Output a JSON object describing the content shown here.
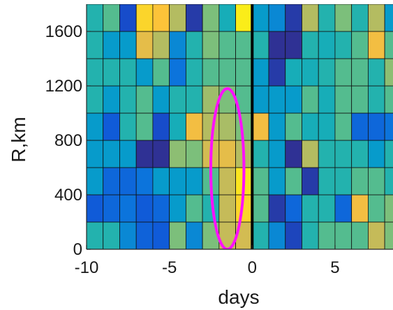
{
  "chart_data": {
    "type": "heatmap",
    "title": "",
    "xlabel": "days",
    "ylabel": "R,km",
    "xlim": [
      -10,
      8.5
    ],
    "ylim": [
      0,
      1800
    ],
    "x_ticks": [
      -10,
      -5,
      0,
      5
    ],
    "x_tick_labels": [
      "-10",
      "-5",
      "0",
      "5"
    ],
    "y_ticks": [
      0,
      400,
      800,
      1200,
      1600
    ],
    "y_tick_labels": [
      "0",
      "400",
      "800",
      "1200",
      "1600"
    ],
    "cell_width_days": 1,
    "cell_height_km": 200,
    "x_cell_starts": [
      -10,
      -9,
      -8,
      -7,
      -6,
      -5,
      -4,
      -3,
      -2,
      -1,
      0,
      1,
      2,
      3,
      4,
      5,
      6,
      7,
      8
    ],
    "y_cell_starts": [
      0,
      200,
      400,
      600,
      800,
      1000,
      1200,
      1400,
      1600
    ],
    "colormap": "parula",
    "value_range": [
      0,
      1
    ],
    "grid": [
      [
        0.45,
        0.45,
        0.3,
        0.18,
        0.15,
        0.62,
        0.3,
        0.62,
        0.75,
        0.78,
        0.45,
        0.3,
        0.08,
        0.45,
        0.55,
        0.55,
        0.55,
        0.75,
        0.62
      ],
      [
        0.15,
        0.2,
        0.25,
        0.15,
        0.2,
        0.35,
        0.55,
        0.45,
        0.75,
        0.92,
        0.55,
        0.05,
        0.2,
        0.45,
        0.45,
        0.2,
        0.85,
        0.55,
        0.62
      ],
      [
        0.35,
        0.2,
        0.2,
        0.25,
        0.35,
        0.35,
        0.35,
        0.55,
        0.75,
        0.95,
        0.55,
        0.35,
        0.55,
        0.05,
        0.45,
        0.45,
        0.55,
        0.55,
        0.45
      ],
      [
        0.35,
        0.35,
        0.35,
        0.02,
        0.02,
        0.65,
        0.62,
        0.78,
        0.82,
        0.72,
        0.45,
        0.35,
        0.02,
        0.72,
        0.45,
        0.45,
        0.45,
        0.35,
        0.45
      ],
      [
        0.35,
        0.15,
        0.45,
        0.55,
        0.1,
        0.42,
        0.85,
        0.72,
        0.7,
        0.62,
        0.85,
        0.35,
        0.55,
        0.42,
        0.42,
        0.55,
        0.2,
        0.2,
        0.25
      ],
      [
        0.45,
        0.35,
        0.45,
        0.55,
        0.35,
        0.45,
        0.45,
        0.68,
        0.62,
        0.55,
        0.35,
        0.35,
        0.35,
        0.55,
        0.42,
        0.55,
        0.55,
        0.45,
        0.55
      ],
      [
        0.45,
        0.45,
        0.45,
        0.35,
        0.55,
        0.25,
        0.45,
        0.55,
        0.55,
        0.55,
        0.35,
        0.05,
        0.42,
        0.42,
        0.45,
        0.55,
        0.55,
        0.45,
        0.65
      ],
      [
        0.45,
        0.35,
        0.35,
        0.82,
        0.72,
        0.3,
        0.45,
        0.62,
        0.55,
        0.55,
        0.45,
        0.02,
        0.02,
        0.45,
        0.42,
        0.45,
        0.55,
        0.85,
        0.55
      ],
      [
        0.45,
        0.55,
        0.1,
        0.92,
        0.88,
        0.72,
        0.05,
        0.62,
        0.42,
        0.97,
        0.35,
        0.3,
        0.05,
        0.72,
        0.45,
        0.62,
        0.45,
        0.72,
        0.35
      ]
    ],
    "annotations": [
      {
        "type": "vertical-line",
        "x": 0,
        "y_range": [
          0,
          1800
        ],
        "color": "#000000"
      },
      {
        "type": "ellipse",
        "center": [
          -1.5,
          590
        ],
        "x_radius": 1.0,
        "y_radius": 590,
        "color": "#ff10ff"
      }
    ]
  }
}
